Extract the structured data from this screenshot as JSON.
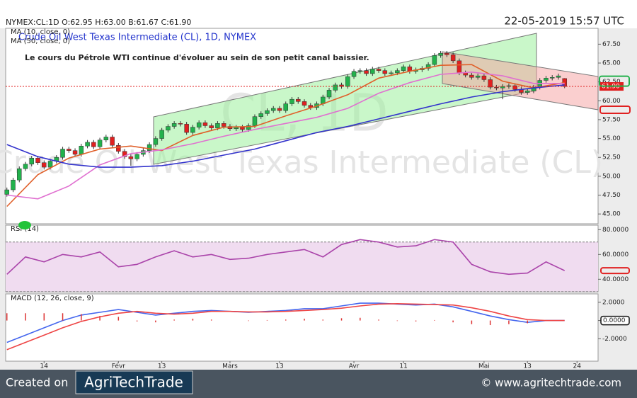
{
  "header": {
    "quote": "NYMEX:CL:1D O:62.95 H:63.00 B:61.67 C:61.90",
    "datetime": "22-05-2019 15:57 UTC"
  },
  "chart_data": [
    {
      "type": "candlestick",
      "title": "Crude Oil West Texas Intermediate (CL), 1D, NYMEX",
      "watermark": [
        "CL, 1D",
        "Crude Oil West Texas Intermediate (CL)"
      ],
      "annotation": "Le cours du Pétrole WTI continue d'évoluer au sein de son petit canal baissier.",
      "up_color": "#22b14c",
      "down_color": "#e02020",
      "open": [
        47.6,
        48.2,
        49.5,
        51.0,
        51.6,
        52.4,
        51.8,
        51.2,
        52.0,
        52.5,
        53.6,
        53.4,
        52.9,
        54.0,
        54.5,
        53.9,
        54.8,
        55.2,
        54.1,
        53.3,
        52.6,
        52.3,
        52.9,
        53.4,
        54.2,
        55.0,
        56.1,
        56.6,
        57.0,
        56.9,
        55.8,
        56.5,
        57.1,
        56.7,
        56.4,
        57.0,
        56.6,
        56.3,
        56.5,
        56.2,
        56.7,
        57.9,
        58.3,
        58.7,
        59.0,
        58.7,
        59.6,
        60.2,
        59.9,
        59.4,
        59.1,
        59.6,
        60.5,
        61.4,
        62.1,
        61.9,
        63.2,
        63.9,
        64.0,
        63.6,
        64.2,
        64.0,
        63.6,
        63.7,
        64.0,
        64.5,
        63.9,
        64.1,
        64.3,
        64.8,
        66.0,
        66.3,
        66.1,
        65.3,
        63.7,
        63.4,
        63.1,
        63.3,
        62.8,
        61.8,
        61.7,
        61.9,
        62.0,
        61.5,
        61.1,
        61.3,
        61.8,
        62.7,
        63.0,
        63.1,
        62.95
      ],
      "high": [
        48.5,
        49.8,
        51.3,
        51.9,
        52.7,
        52.7,
        52.1,
        52.3,
        52.8,
        53.9,
        53.9,
        53.7,
        54.3,
        54.8,
        54.8,
        55.1,
        55.5,
        55.5,
        54.4,
        53.6,
        52.9,
        53.2,
        53.7,
        54.5,
        55.3,
        56.4,
        56.9,
        57.3,
        57.3,
        57.2,
        56.8,
        57.4,
        57.4,
        57.0,
        57.3,
        57.3,
        56.9,
        56.8,
        56.8,
        57.0,
        58.2,
        58.6,
        59.0,
        59.3,
        59.3,
        59.9,
        60.5,
        60.5,
        60.2,
        59.7,
        59.9,
        60.8,
        61.7,
        62.4,
        62.4,
        63.5,
        64.2,
        64.3,
        64.3,
        64.5,
        64.5,
        64.3,
        64.0,
        64.3,
        64.8,
        64.8,
        64.4,
        64.6,
        65.1,
        66.3,
        66.6,
        66.6,
        66.4,
        65.6,
        64.0,
        63.7,
        63.6,
        63.6,
        63.1,
        62.1,
        62.2,
        62.3,
        62.3,
        61.8,
        61.6,
        62.1,
        63.0,
        63.3,
        63.4,
        63.6,
        63.0
      ],
      "low": [
        47.3,
        47.9,
        49.2,
        50.7,
        51.3,
        51.5,
        50.9,
        50.9,
        51.7,
        52.2,
        53.1,
        52.6,
        52.6,
        53.7,
        53.6,
        53.6,
        54.5,
        53.8,
        53.0,
        52.3,
        51.4,
        52.0,
        52.6,
        53.1,
        53.9,
        54.7,
        55.8,
        56.3,
        56.6,
        55.5,
        55.5,
        56.2,
        56.4,
        56.1,
        56.1,
        56.3,
        56.0,
        56.0,
        55.9,
        55.9,
        56.4,
        57.6,
        58.0,
        58.4,
        58.4,
        58.4,
        59.3,
        59.6,
        59.1,
        58.8,
        58.8,
        59.3,
        60.2,
        61.1,
        61.6,
        61.6,
        62.9,
        63.6,
        63.3,
        63.3,
        63.7,
        63.3,
        63.3,
        63.4,
        63.7,
        63.6,
        63.6,
        63.8,
        64.0,
        64.5,
        65.7,
        65.8,
        65.0,
        63.4,
        63.1,
        62.8,
        62.8,
        62.5,
        61.5,
        61.4,
        60.2,
        61.6,
        61.2,
        60.8,
        60.8,
        61.0,
        61.5,
        62.4,
        62.7,
        62.8,
        61.67
      ],
      "close": [
        48.2,
        49.5,
        51.0,
        51.6,
        52.4,
        51.8,
        51.2,
        52.0,
        52.5,
        53.6,
        53.4,
        52.9,
        54.0,
        54.5,
        53.9,
        54.8,
        55.2,
        54.1,
        53.3,
        52.6,
        52.3,
        52.9,
        53.4,
        54.2,
        55.0,
        56.1,
        56.6,
        57.0,
        56.9,
        55.8,
        56.5,
        57.1,
        56.7,
        56.4,
        57.0,
        56.6,
        56.3,
        56.5,
        56.2,
        56.7,
        57.9,
        58.3,
        58.7,
        59.0,
        58.7,
        59.6,
        60.2,
        59.9,
        59.4,
        59.1,
        59.6,
        60.5,
        61.4,
        62.1,
        61.9,
        63.2,
        63.9,
        64.0,
        63.6,
        64.2,
        64.0,
        63.6,
        63.7,
        64.0,
        64.5,
        63.9,
        64.1,
        64.3,
        64.8,
        66.0,
        66.3,
        66.1,
        65.3,
        63.7,
        63.4,
        63.1,
        63.3,
        62.8,
        61.8,
        61.7,
        61.9,
        62.0,
        61.5,
        61.1,
        61.3,
        61.8,
        62.7,
        63.0,
        63.1,
        63.3,
        61.9
      ],
      "last_label": "61.90",
      "xlim": [
        -0.2,
        95.4
      ],
      "ylim": [
        43.7,
        69.6
      ],
      "yticks": [
        {
          "value": 45,
          "label": "45.00"
        },
        {
          "value": 47.5,
          "label": "47.50"
        },
        {
          "value": 50,
          "label": "50.00"
        },
        {
          "value": 52.5,
          "label": "52.50"
        },
        {
          "value": 55,
          "label": "55.00"
        },
        {
          "value": 57.5,
          "label": "57.50"
        },
        {
          "value": 60,
          "label": "60.00"
        },
        {
          "value": 62.5,
          "label": "62.50"
        },
        {
          "value": 65,
          "label": "65.00"
        },
        {
          "value": 67.5,
          "label": "67.50"
        }
      ],
      "series": [
        {
          "name": "MA (10, close, 0)",
          "color": "#e0602a",
          "x": [
            0,
            5,
            10,
            15,
            20,
            25,
            30,
            35,
            40,
            45,
            50,
            55,
            60,
            65,
            70,
            75,
            80,
            85,
            90
          ],
          "values": [
            46.0,
            50.2,
            52.4,
            53.6,
            54.0,
            53.4,
            55.4,
            56.5,
            56.6,
            58.0,
            59.3,
            60.8,
            63.0,
            63.9,
            64.7,
            64.8,
            62.6,
            61.7,
            62.4
          ]
        },
        {
          "color": "#e070d0",
          "x": [
            0,
            5,
            10,
            15,
            20,
            25,
            30,
            35,
            40,
            45,
            50,
            55,
            60,
            65,
            70,
            75,
            80,
            85,
            90
          ],
          "values": [
            47.5,
            47.0,
            48.7,
            51.5,
            53.0,
            53.5,
            54.3,
            55.3,
            56.2,
            57.0,
            57.8,
            59.0,
            61.0,
            62.4,
            63.5,
            63.8,
            63.3,
            62.3,
            62.3
          ]
        },
        {
          "name": "MA (50, close, 0)",
          "color": "#3333cc",
          "x": [
            0,
            5,
            10,
            15,
            20,
            25,
            30,
            35,
            40,
            45,
            50,
            55,
            60,
            65,
            70,
            75,
            80,
            85,
            90
          ],
          "values": [
            54.2,
            52.6,
            51.6,
            51.2,
            51.2,
            51.4,
            52.0,
            52.8,
            53.6,
            54.7,
            55.8,
            56.6,
            57.6,
            58.6,
            59.6,
            60.5,
            61.2,
            61.7,
            62.1
          ]
        }
      ]
    },
    {
      "type": "line",
      "title": "RSI (14)",
      "xlim": [
        -0.2,
        95.4
      ],
      "ylim": [
        29.9,
        83.6
      ],
      "yticks": [
        {
          "value": 80,
          "label": "80.0000"
        },
        {
          "value": 60,
          "label": "60.0000"
        },
        {
          "value": 40,
          "label": "40.0000"
        }
      ],
      "bands": [
        70,
        30
      ],
      "band_color": "#f0dcf0",
      "series": [
        {
          "color": "#aa44aa",
          "x": [
            0,
            3,
            6,
            9,
            12,
            15,
            18,
            21,
            24,
            27,
            30,
            33,
            36,
            39,
            42,
            45,
            48,
            51,
            54,
            57,
            60,
            63,
            66,
            69,
            72,
            75,
            78,
            81,
            84,
            87,
            90
          ],
          "values": [
            44,
            58,
            54,
            60,
            58,
            62,
            50,
            52,
            58,
            63,
            58,
            60,
            56,
            57,
            60,
            62,
            64,
            58,
            68,
            72,
            70,
            66,
            67,
            72,
            70,
            52,
            46,
            44,
            45,
            54,
            47
          ]
        }
      ]
    },
    {
      "type": "line",
      "title": "MACD (12, 26, close, 9)",
      "xlim": [
        -0.2,
        95.4
      ],
      "ylim": [
        -4.46,
        2.92
      ],
      "yticks": [
        {
          "value": 2,
          "label": "2.0000"
        },
        {
          "value": 0,
          "label": "0.0000"
        },
        {
          "value": -2,
          "label": "-2.0000"
        }
      ],
      "xticks": [
        {
          "value": 6,
          "label": "14"
        },
        {
          "value": 18,
          "label": "Févr"
        },
        {
          "value": 25,
          "label": "13"
        },
        {
          "value": 36,
          "label": "Mars"
        },
        {
          "value": 44,
          "label": "13"
        },
        {
          "value": 56,
          "label": "Avr"
        },
        {
          "value": 64,
          "label": "11"
        },
        {
          "value": 77,
          "label": "Mai"
        },
        {
          "value": 84,
          "label": "13"
        },
        {
          "value": 92,
          "label": "24"
        }
      ],
      "last_label": "0.0000",
      "series": [
        {
          "color": "#4466ee",
          "x": [
            0,
            3,
            6,
            9,
            12,
            15,
            18,
            21,
            24,
            27,
            30,
            33,
            36,
            39,
            42,
            45,
            48,
            51,
            54,
            57,
            60,
            63,
            66,
            69,
            72,
            75,
            78,
            81,
            84,
            87,
            90
          ],
          "values": [
            -2.4,
            -1.6,
            -0.8,
            0.0,
            0.6,
            0.9,
            1.2,
            0.9,
            0.6,
            0.8,
            1.0,
            1.1,
            1.0,
            0.9,
            1.0,
            1.1,
            1.3,
            1.3,
            1.6,
            1.9,
            1.9,
            1.8,
            1.7,
            1.8,
            1.5,
            1.0,
            0.5,
            0.1,
            -0.2,
            0.0,
            0.0
          ]
        },
        {
          "color": "#ee4444",
          "x": [
            0,
            3,
            6,
            9,
            12,
            15,
            18,
            21,
            24,
            27,
            30,
            33,
            36,
            39,
            42,
            45,
            48,
            51,
            54,
            57,
            60,
            63,
            66,
            69,
            72,
            75,
            78,
            81,
            84,
            87,
            90
          ],
          "values": [
            -3.2,
            -2.4,
            -1.6,
            -0.8,
            -0.1,
            0.4,
            0.8,
            1.0,
            0.8,
            0.7,
            0.8,
            1.0,
            1.0,
            0.95,
            0.95,
            1.0,
            1.1,
            1.2,
            1.35,
            1.6,
            1.8,
            1.85,
            1.8,
            1.75,
            1.7,
            1.4,
            1.0,
            0.5,
            0.1,
            0.0,
            0.0
          ]
        },
        {
          "type": "bar",
          "color": "#dd3333",
          "x": [
            0,
            3,
            6,
            9,
            12,
            15,
            18,
            21,
            24,
            27,
            30,
            33,
            36,
            39,
            42,
            45,
            48,
            51,
            54,
            57,
            60,
            63,
            66,
            69,
            72,
            75,
            78,
            81,
            84,
            87,
            90
          ],
          "values": [
            0.8,
            0.8,
            0.8,
            0.8,
            0.7,
            0.5,
            0.4,
            -0.1,
            -0.2,
            0.1,
            0.2,
            0.1,
            0,
            -0.05,
            0.05,
            0.1,
            0.2,
            0.1,
            0.25,
            0.3,
            0.1,
            -0.05,
            -0.1,
            0.05,
            -0.2,
            -0.4,
            -0.5,
            -0.4,
            -0.3,
            0,
            0
          ]
        }
      ]
    }
  ],
  "footer": {
    "created": "Created on",
    "logo": "AgriTechTrade",
    "site": "© www.agritechtrade.com"
  }
}
